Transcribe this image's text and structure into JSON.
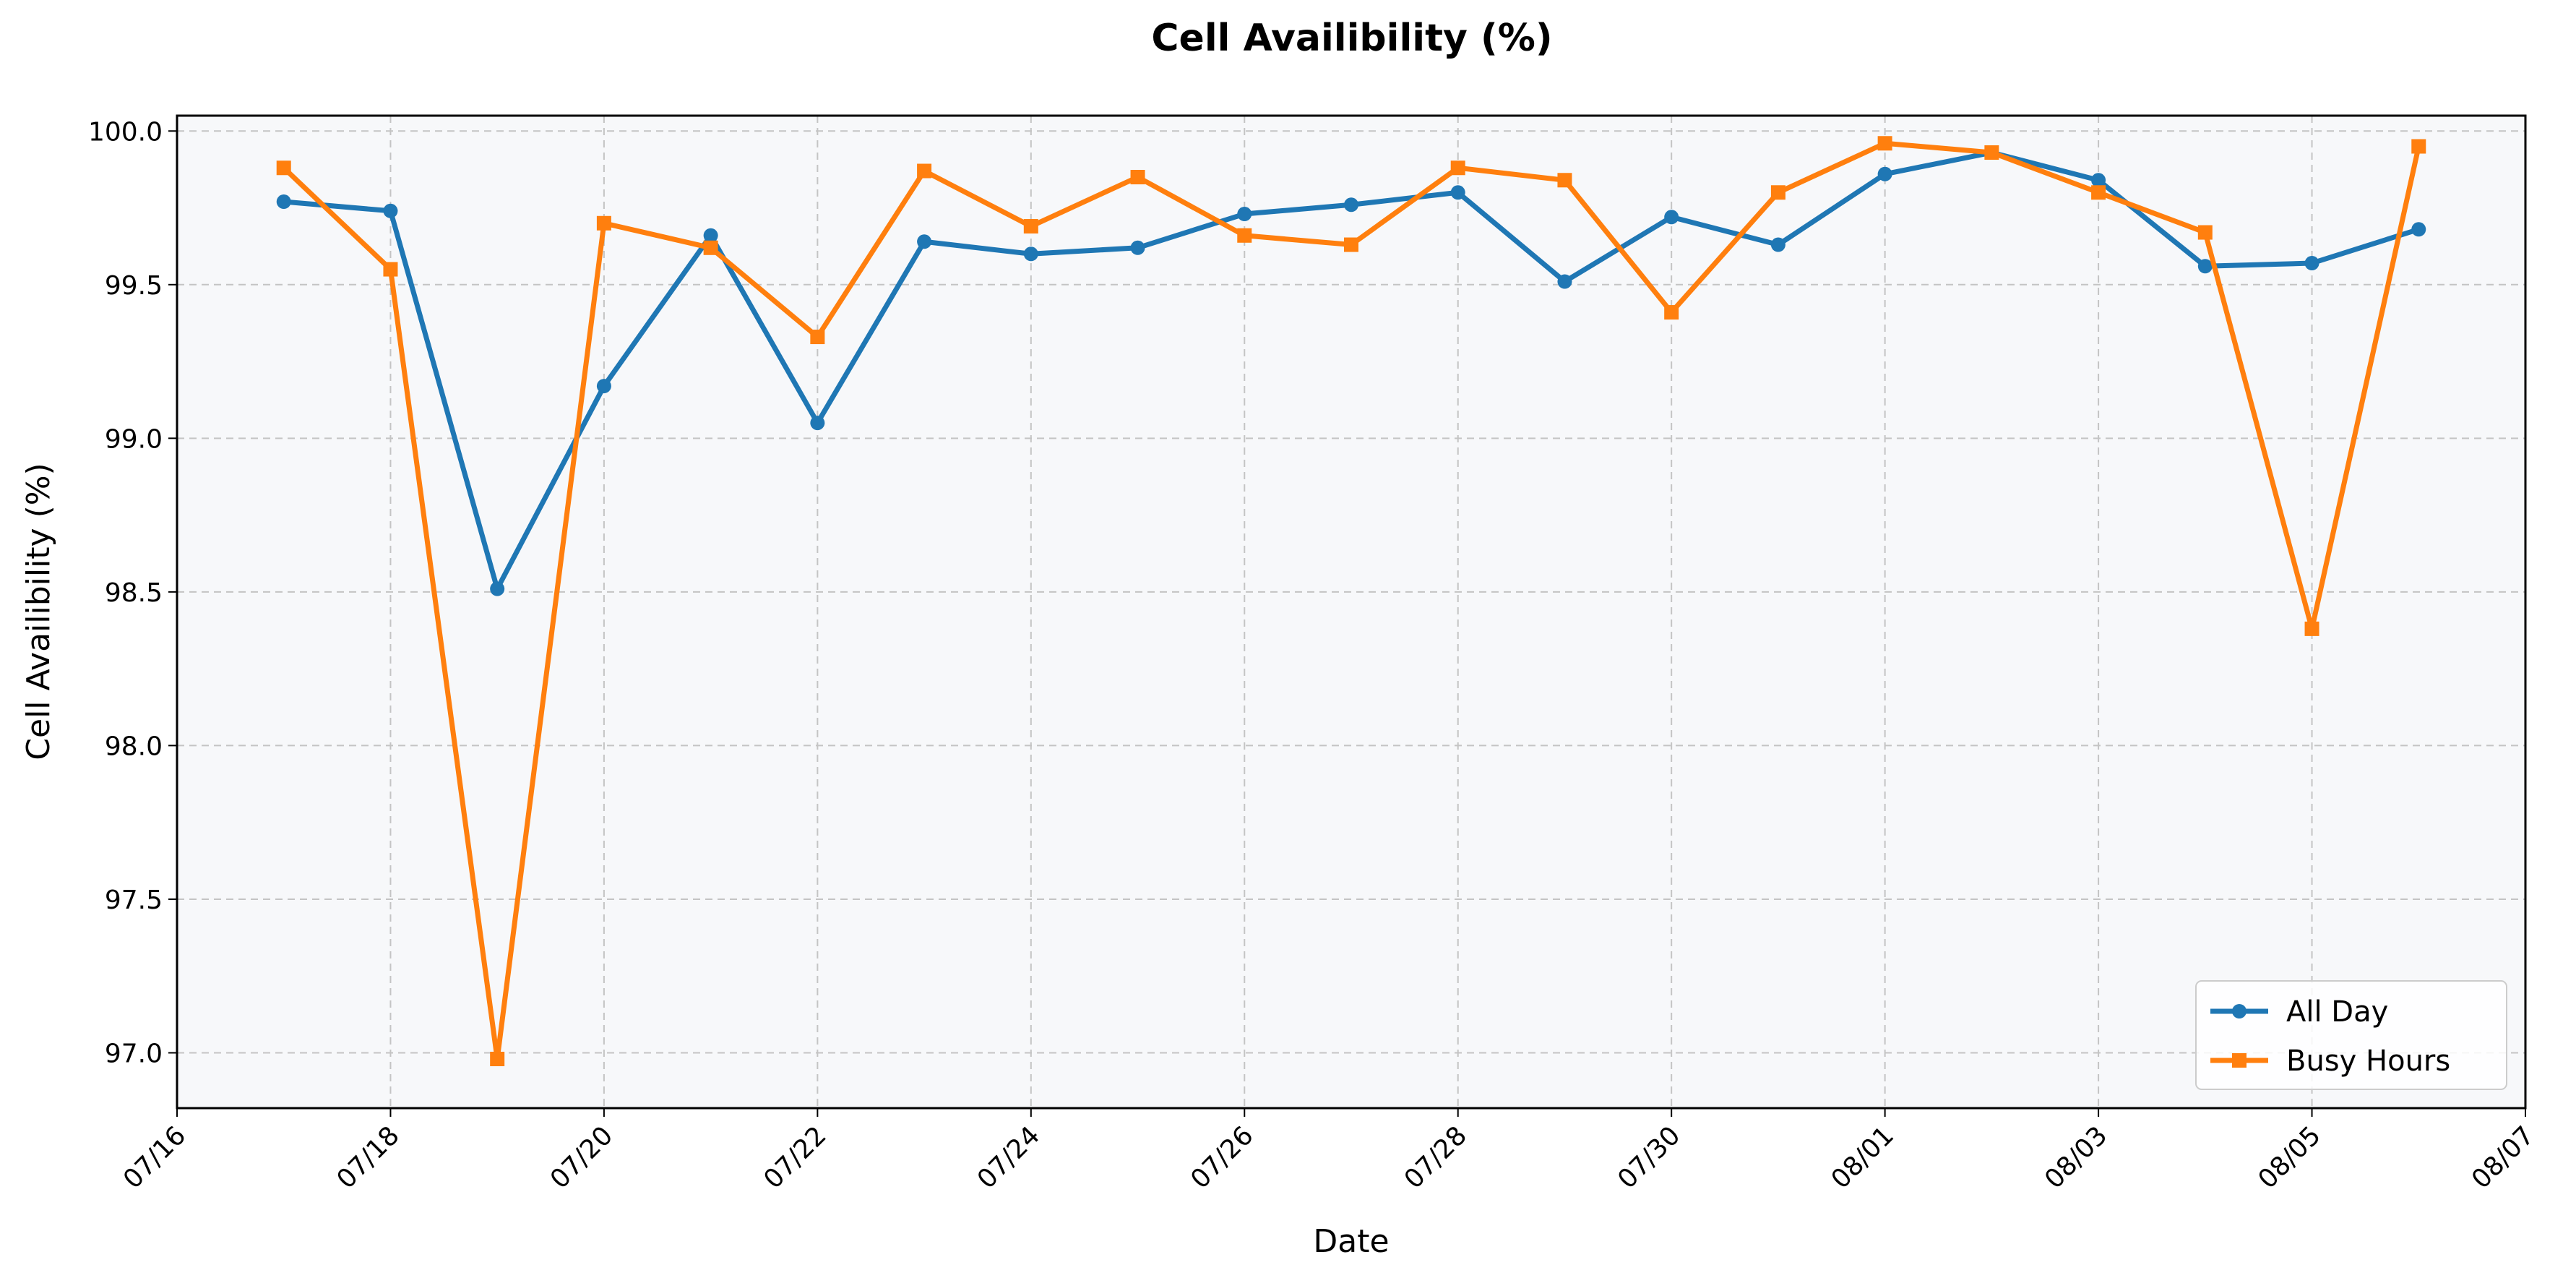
{
  "chart_data": {
    "type": "line",
    "title": "Cell Availibility (%)",
    "xlabel": "Date",
    "ylabel": "Cell Availibility (%)",
    "x_tick_labels": [
      "07/16",
      "07/18",
      "07/20",
      "07/22",
      "07/24",
      "07/26",
      "07/28",
      "07/30",
      "08/01",
      "08/03",
      "08/05",
      "08/07"
    ],
    "y_tick_labels": [
      "97.0",
      "97.5",
      "98.0",
      "98.5",
      "99.0",
      "99.5",
      "100.0"
    ],
    "xlim": [
      "07/16",
      "08/07"
    ],
    "ylim": [
      96.82,
      100.05
    ],
    "grid": true,
    "legend_position": "lower-right",
    "x": [
      "07/17",
      "07/18",
      "07/19",
      "07/20",
      "07/21",
      "07/22",
      "07/23",
      "07/24",
      "07/25",
      "07/26",
      "07/27",
      "07/28",
      "07/29",
      "07/30",
      "07/31",
      "08/01",
      "08/02",
      "08/03",
      "08/04",
      "08/05",
      "08/06"
    ],
    "series": [
      {
        "name": "All Day",
        "color": "#1f77b4",
        "marker": "circle",
        "values": [
          99.77,
          99.74,
          98.51,
          99.17,
          99.66,
          99.05,
          99.64,
          99.6,
          99.62,
          99.73,
          99.76,
          99.8,
          99.51,
          99.72,
          99.63,
          99.86,
          99.93,
          99.84,
          99.56,
          99.57,
          99.68
        ]
      },
      {
        "name": "Busy Hours",
        "color": "#ff7f0e",
        "marker": "square",
        "values": [
          99.88,
          99.55,
          96.98,
          99.7,
          99.62,
          99.33,
          99.87,
          99.69,
          99.85,
          99.66,
          99.63,
          99.88,
          99.84,
          99.41,
          99.8,
          99.96,
          99.93,
          99.8,
          99.67,
          98.38,
          99.95
        ]
      }
    ]
  },
  "colors": {
    "plot_background": "#f7f8fa",
    "grid": "#c4c4c4",
    "axis": "#000000"
  }
}
